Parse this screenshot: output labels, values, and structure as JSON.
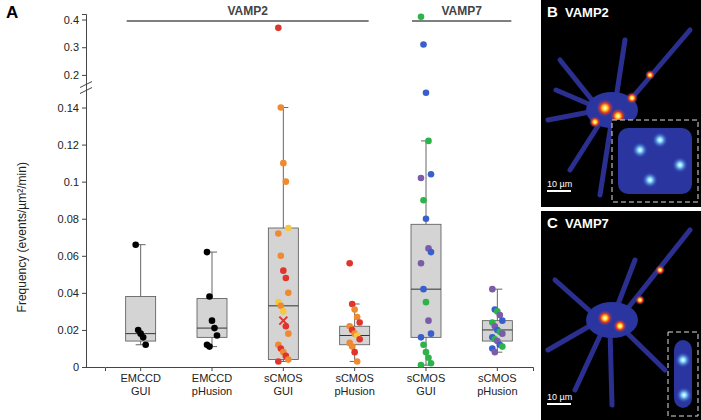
{
  "chart_data": {
    "type": "box",
    "title": "A",
    "y_label": "Frequency  (events/µm²/min)",
    "categories": [
      "EMCCD GUI",
      "EMCCD pHusion",
      "sCMOS GUI",
      "sCMOS pHusion",
      "sCMOS GUI",
      "sCMOS pHusion"
    ],
    "groups": [
      {
        "label": "VAMP2",
        "categories": [
          0,
          1,
          2,
          3
        ]
      },
      {
        "label": "VAMP7",
        "categories": [
          4,
          5
        ]
      }
    ],
    "color": "#d4d4d4",
    "ylim": [
      0,
      0.42
    ],
    "ybreak": [
      0.15,
      0.16
    ],
    "yticks": [
      0,
      0.02,
      0.04,
      0.06,
      0.08,
      0.1,
      0.12,
      0.14,
      0.2,
      0.3,
      0.4
    ],
    "boxes": [
      {
        "whisker_low": 0.012,
        "q1": 0.014,
        "median": 0.018,
        "q3": 0.038,
        "whisker_high": 0.066,
        "points": [
          {
            "value": 0.066,
            "color": "#000000"
          },
          {
            "value": 0.02,
            "color": "#000000"
          },
          {
            "value": 0.018,
            "color": "#000000"
          },
          {
            "value": 0.016,
            "color": "#000000"
          },
          {
            "value": 0.012,
            "color": "#000000"
          }
        ]
      },
      {
        "whisker_low": 0.011,
        "q1": 0.016,
        "median": 0.021,
        "q3": 0.037,
        "whisker_high": 0.062,
        "points": [
          {
            "value": 0.062,
            "color": "#000000"
          },
          {
            "value": 0.038,
            "color": "#000000"
          },
          {
            "value": 0.025,
            "color": "#000000"
          },
          {
            "value": 0.021,
            "color": "#000000"
          },
          {
            "value": 0.017,
            "color": "#000000"
          },
          {
            "value": 0.012,
            "color": "#000000"
          },
          {
            "value": 0.011,
            "color": "#000000"
          }
        ]
      },
      {
        "whisker_low": 0.003,
        "q1": 0.004,
        "median": 0.033,
        "q3": 0.075,
        "whisker_high": 0.14,
        "mean": 0.025,
        "points": [
          {
            "value": 0.37,
            "color": "#e0352b"
          },
          {
            "value": 0.14,
            "color": "#f08a30"
          },
          {
            "value": 0.11,
            "color": "#f08a30"
          },
          {
            "value": 0.1,
            "color": "#f08a30"
          },
          {
            "value": 0.075,
            "color": "#f5c842"
          },
          {
            "value": 0.072,
            "color": "#f08a30"
          },
          {
            "value": 0.06,
            "color": "#f08a30"
          },
          {
            "value": 0.052,
            "color": "#e0352b"
          },
          {
            "value": 0.048,
            "color": "#e0352b"
          },
          {
            "value": 0.04,
            "color": "#f08a30"
          },
          {
            "value": 0.035,
            "color": "#f5c842"
          },
          {
            "value": 0.033,
            "color": "#f08a30"
          },
          {
            "value": 0.03,
            "color": "#f5c842"
          },
          {
            "value": 0.022,
            "color": "#e0352b"
          },
          {
            "value": 0.018,
            "color": "#f08a30"
          },
          {
            "value": 0.012,
            "color": "#f08a30"
          },
          {
            "value": 0.01,
            "color": "#e0352b"
          },
          {
            "value": 0.008,
            "color": "#f08a30"
          },
          {
            "value": 0.006,
            "color": "#e0352b"
          },
          {
            "value": 0.004,
            "color": "#f08a30"
          },
          {
            "value": 0.003,
            "color": "#e0352b"
          }
        ]
      },
      {
        "whisker_low": 0.003,
        "q1": 0.012,
        "median": 0.017,
        "q3": 0.022,
        "whisker_high": 0.034,
        "points": [
          {
            "value": 0.056,
            "color": "#e0352b"
          },
          {
            "value": 0.034,
            "color": "#e0352b"
          },
          {
            "value": 0.031,
            "color": "#f08a30"
          },
          {
            "value": 0.027,
            "color": "#f08a30"
          },
          {
            "value": 0.024,
            "color": "#e0352b"
          },
          {
            "value": 0.022,
            "color": "#f08a30"
          },
          {
            "value": 0.02,
            "color": "#e0352b"
          },
          {
            "value": 0.018,
            "color": "#f08a30"
          },
          {
            "value": 0.017,
            "color": "#f5c842"
          },
          {
            "value": 0.015,
            "color": "#e0352b"
          },
          {
            "value": 0.013,
            "color": "#f08a30"
          },
          {
            "value": 0.011,
            "color": "#f08a30"
          },
          {
            "value": 0.008,
            "color": "#e0352b"
          },
          {
            "value": 0.003,
            "color": "#f08a30"
          }
        ]
      },
      {
        "whisker_low": 0.001,
        "q1": 0.016,
        "median": 0.042,
        "q3": 0.077,
        "whisker_high": 0.122,
        "points": [
          {
            "value": 0.41,
            "color": "#2db34a"
          },
          {
            "value": 0.31,
            "color": "#3a5fcd"
          },
          {
            "value": 0.148,
            "color": "#3a5fcd"
          },
          {
            "value": 0.122,
            "color": "#2db34a"
          },
          {
            "value": 0.104,
            "color": "#3a5fcd"
          },
          {
            "value": 0.102,
            "color": "#7b5ca8"
          },
          {
            "value": 0.09,
            "color": "#2db34a"
          },
          {
            "value": 0.08,
            "color": "#3a5fcd"
          },
          {
            "value": 0.064,
            "color": "#7b5ca8"
          },
          {
            "value": 0.062,
            "color": "#3a5fcd"
          },
          {
            "value": 0.056,
            "color": "#7b5ca8"
          },
          {
            "value": 0.042,
            "color": "#3a5fcd"
          },
          {
            "value": 0.035,
            "color": "#2db34a"
          },
          {
            "value": 0.025,
            "color": "#7b5ca8"
          },
          {
            "value": 0.018,
            "color": "#3a5fcd"
          },
          {
            "value": 0.016,
            "color": "#3a5fcd"
          },
          {
            "value": 0.012,
            "color": "#2db34a"
          },
          {
            "value": 0.008,
            "color": "#2db34a"
          },
          {
            "value": 0.005,
            "color": "#2db34a"
          },
          {
            "value": 0.002,
            "color": "#2db34a"
          },
          {
            "value": 0.001,
            "color": "#2db34a"
          }
        ]
      },
      {
        "whisker_low": 0.008,
        "q1": 0.014,
        "median": 0.02,
        "q3": 0.025,
        "whisker_high": 0.042,
        "points": [
          {
            "value": 0.042,
            "color": "#7b5ca8"
          },
          {
            "value": 0.031,
            "color": "#3a5fcd"
          },
          {
            "value": 0.03,
            "color": "#2db34a"
          },
          {
            "value": 0.028,
            "color": "#7b5ca8"
          },
          {
            "value": 0.025,
            "color": "#3a5fcd"
          },
          {
            "value": 0.024,
            "color": "#2db34a"
          },
          {
            "value": 0.022,
            "color": "#7b5ca8"
          },
          {
            "value": 0.02,
            "color": "#3a5fcd"
          },
          {
            "value": 0.019,
            "color": "#2db34a"
          },
          {
            "value": 0.018,
            "color": "#7b5ca8"
          },
          {
            "value": 0.016,
            "color": "#3a5fcd"
          },
          {
            "value": 0.015,
            "color": "#2db34a"
          },
          {
            "value": 0.014,
            "color": "#7b5ca8"
          },
          {
            "value": 0.012,
            "color": "#3a5fcd"
          },
          {
            "value": 0.011,
            "color": "#2db34a"
          },
          {
            "value": 0.01,
            "color": "#3a5fcd"
          },
          {
            "value": 0.008,
            "color": "#7b5ca8"
          }
        ]
      }
    ]
  },
  "panels": [
    {
      "label": "B",
      "title": "VAMP2",
      "scale_bar": "10 µm"
    },
    {
      "label": "C",
      "title": "VAMP7",
      "scale_bar": "10 µm"
    }
  ]
}
